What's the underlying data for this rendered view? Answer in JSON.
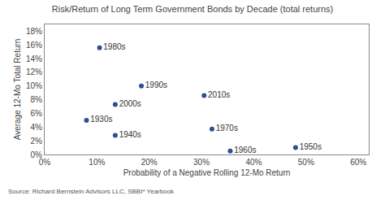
{
  "chart_data": {
    "type": "scatter",
    "title": "Risk/Return of Long Term Government Bonds by Decade (total returns)",
    "xlabel": "Probability of a Negative Rolling 12-Mo Return",
    "ylabel": "Average 12-Mo Total Return",
    "source": "Source: Richard Bernstein Advisors LLC, SBBI* Yearbook",
    "labels": [
      "1930s",
      "1940s",
      "1950s",
      "1960s",
      "1970s",
      "1980s",
      "1990s",
      "2000s",
      "2010s"
    ],
    "x": [
      0.08,
      0.135,
      0.48,
      0.355,
      0.32,
      0.105,
      0.185,
      0.135,
      0.305
    ],
    "values": [
      0.05,
      0.028,
      0.01,
      0.005,
      0.037,
      0.156,
      0.1,
      0.073,
      0.086
    ],
    "color": "#2e4e8e",
    "xlim": [
      0,
      0.62
    ],
    "ylim": [
      0,
      0.19
    ],
    "xticks": [
      {
        "value": 0,
        "label": "0%"
      },
      {
        "value": 0.1,
        "label": "10%"
      },
      {
        "value": 0.2,
        "label": "20%"
      },
      {
        "value": 0.3,
        "label": "30%"
      },
      {
        "value": 0.4,
        "label": "40%"
      },
      {
        "value": 0.5,
        "label": "50%"
      },
      {
        "value": 0.6,
        "label": "60%"
      }
    ],
    "yticks": [
      {
        "value": 0,
        "label": "0%"
      },
      {
        "value": 0.02,
        "label": "2%"
      },
      {
        "value": 0.04,
        "label": "4%"
      },
      {
        "value": 0.06,
        "label": "6%"
      },
      {
        "value": 0.08,
        "label": "8%"
      },
      {
        "value": 0.1,
        "label": "10%"
      },
      {
        "value": 0.12,
        "label": "12%"
      },
      {
        "value": 0.14,
        "label": "14%"
      },
      {
        "value": 0.16,
        "label": "16%"
      },
      {
        "value": 0.18,
        "label": "18%"
      }
    ],
    "grid": false
  }
}
